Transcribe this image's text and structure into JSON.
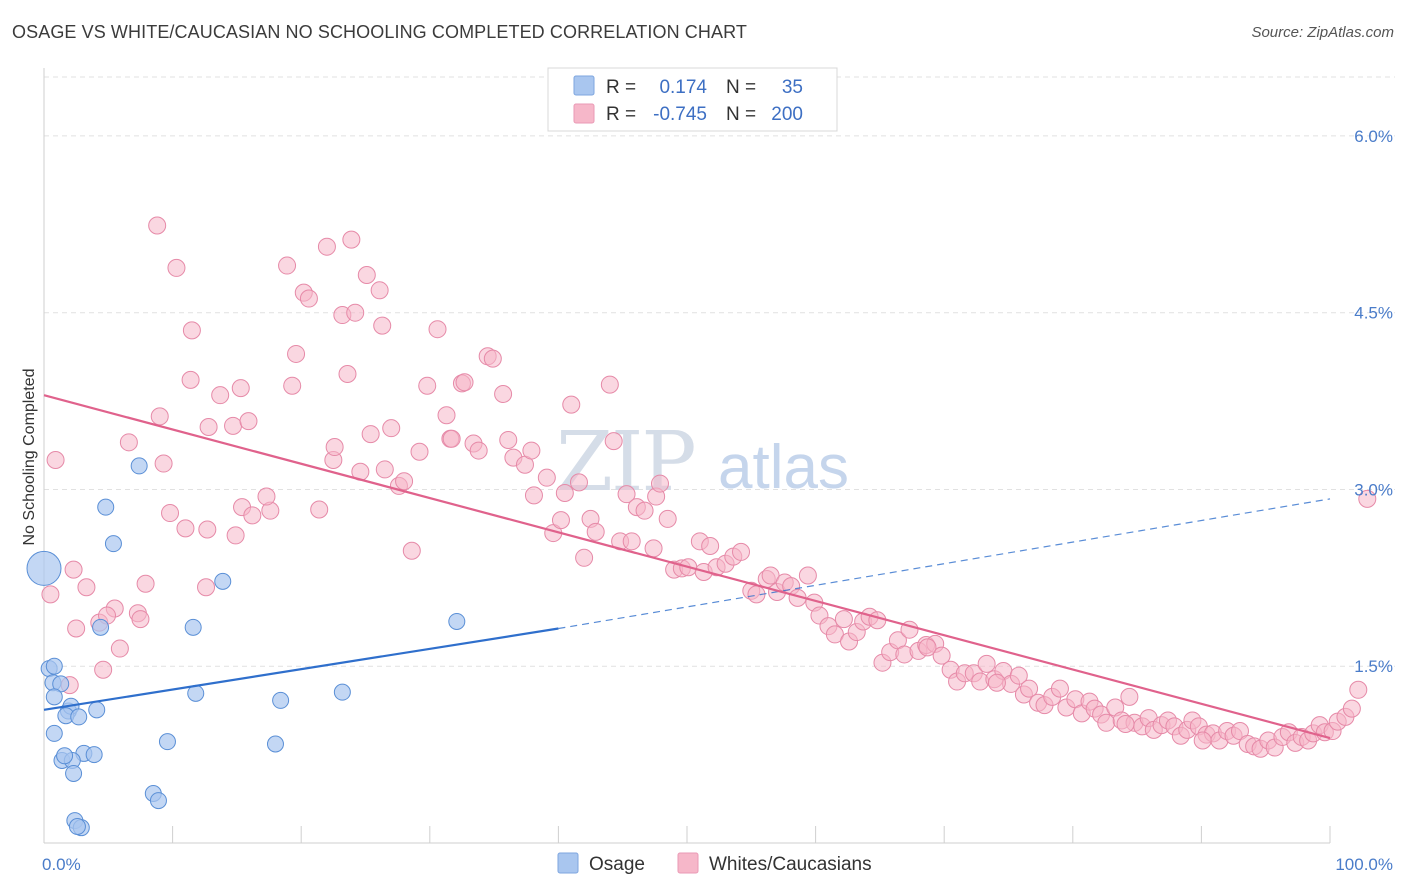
{
  "title": "OSAGE VS WHITE/CAUCASIAN NO SCHOOLING COMPLETED CORRELATION CHART",
  "source": "Source: ZipAtlas.com",
  "watermark": {
    "zip": "ZIP",
    "atlas": "atlas"
  },
  "legend": {
    "rows": [
      {
        "r_label": "R =",
        "r_value": "0.174",
        "n_label": "N =",
        "n_value": "35",
        "color": "#a9c6ef"
      },
      {
        "r_label": "R =",
        "r_value": "-0.745",
        "n_label": "N =",
        "n_value": "200",
        "color": "#f6b7c9"
      }
    ]
  },
  "bottom_legend": [
    {
      "label": "Osage",
      "color": "#a9c6ef"
    },
    {
      "label": "Whites/Caucasians",
      "color": "#f6b7c9"
    }
  ],
  "colors": {
    "osage_fill": "#a9c6ef",
    "osage_stroke": "#5a8fd6",
    "osage_line": "#2f6fcc",
    "white_fill": "#f6b7c9",
    "white_stroke": "#e68aa8",
    "white_line": "#e0628c",
    "grid": "#e1e1e1",
    "tick_text": "#4a7cc9"
  },
  "chart_data": {
    "type": "scatter",
    "title": "OSAGE VS WHITE/CAUCASIAN NO SCHOOLING COMPLETED CORRELATION CHART",
    "xlabel": "",
    "ylabel": "No Schooling Completed",
    "xlim": [
      0,
      100
    ],
    "ylim": [
      0,
      6.5
    ],
    "y_ticks": [
      {
        "v": 1.5,
        "label": "1.5%"
      },
      {
        "v": 3.0,
        "label": "3.0%"
      },
      {
        "v": 4.5,
        "label": "4.5%"
      },
      {
        "v": 6.0,
        "label": "6.0%"
      }
    ],
    "x_tick_labels": [
      {
        "v": 0,
        "label": "0.0%"
      },
      {
        "v": 100,
        "label": "100.0%"
      }
    ],
    "grid": true,
    "legend_position": "top-center",
    "series": [
      {
        "name": "Osage",
        "r": 0.174,
        "n": 35,
        "trend": {
          "x0": 0,
          "y0": 1.13,
          "x1": 40,
          "y1": 1.82,
          "dash_to_x": 100,
          "dash_to_y": 2.92
        },
        "points": [
          [
            0,
            2.33,
            2.0
          ],
          [
            0.4,
            1.48,
            1
          ],
          [
            0.8,
            1.5,
            1
          ],
          [
            0.7,
            1.36,
            1
          ],
          [
            1.3,
            1.35,
            1
          ],
          [
            0.8,
            0.93,
            1
          ],
          [
            1.9,
            1.12,
            1
          ],
          [
            2.1,
            1.16,
            1
          ],
          [
            1.7,
            1.08,
            1
          ],
          [
            2.7,
            1.07,
            1
          ],
          [
            4.1,
            1.13,
            1
          ],
          [
            3.1,
            0.76,
            1
          ],
          [
            3.9,
            0.75,
            1
          ],
          [
            1.4,
            0.7,
            1
          ],
          [
            2.2,
            0.7,
            1
          ],
          [
            2.3,
            0.59,
            1
          ],
          [
            1.6,
            0.74,
            1
          ],
          [
            2.4,
            0.19,
            1
          ],
          [
            2.9,
            0.13,
            1
          ],
          [
            2.6,
            0.14,
            1
          ],
          [
            4.8,
            2.85,
            1
          ],
          [
            5.4,
            2.54,
            1
          ],
          [
            7.4,
            3.2,
            1
          ],
          [
            8.5,
            0.42,
            1
          ],
          [
            8.9,
            0.36,
            1
          ],
          [
            9.6,
            0.86,
            1
          ],
          [
            11.6,
            1.83,
            1
          ],
          [
            11.8,
            1.27,
            1
          ],
          [
            13.9,
            2.22,
            1
          ],
          [
            18.0,
            0.84,
            1
          ],
          [
            18.4,
            1.21,
            1
          ],
          [
            23.2,
            1.28,
            1
          ],
          [
            4.4,
            1.83,
            1
          ],
          [
            32.1,
            1.88,
            1
          ],
          [
            0.8,
            1.24,
            1
          ]
        ]
      },
      {
        "name": "Whites/Caucasians",
        "r": -0.745,
        "n": 200,
        "trend": {
          "x0": 0,
          "y0": 3.8,
          "x1": 100,
          "y1": 0.89
        },
        "points": [
          [
            8.8,
            5.24
          ],
          [
            10.3,
            4.88
          ],
          [
            9.0,
            3.62
          ],
          [
            9.3,
            3.22
          ],
          [
            11.5,
            4.35
          ],
          [
            11.4,
            3.93
          ],
          [
            12.8,
            3.53
          ],
          [
            13.7,
            3.8
          ],
          [
            14.7,
            3.54
          ],
          [
            15.3,
            3.86
          ],
          [
            15.9,
            3.58
          ],
          [
            12.7,
            2.66
          ],
          [
            14.9,
            2.61
          ],
          [
            15.4,
            2.85
          ],
          [
            16.2,
            2.78
          ],
          [
            17.6,
            2.82
          ],
          [
            9.8,
            2.8
          ],
          [
            6.6,
            3.4
          ],
          [
            11.0,
            2.67
          ],
          [
            12.6,
            2.17
          ],
          [
            7.3,
            1.95
          ],
          [
            7.5,
            1.9
          ],
          [
            7.9,
            2.2
          ],
          [
            5.5,
            1.99
          ],
          [
            5.9,
            1.65
          ],
          [
            4.6,
            1.47
          ],
          [
            3.3,
            2.17
          ],
          [
            2.3,
            2.32
          ],
          [
            2.5,
            1.82
          ],
          [
            0.9,
            3.25
          ],
          [
            0.5,
            2.11
          ],
          [
            2.0,
            1.34
          ],
          [
            4.3,
            1.87
          ],
          [
            4.9,
            1.93
          ],
          [
            17.3,
            2.94
          ],
          [
            18.9,
            4.9
          ],
          [
            19.6,
            4.15
          ],
          [
            19.3,
            3.88
          ],
          [
            20.2,
            4.67
          ],
          [
            20.6,
            4.62
          ],
          [
            21.4,
            2.83
          ],
          [
            22.0,
            5.06
          ],
          [
            23.2,
            4.48
          ],
          [
            23.9,
            5.12
          ],
          [
            23.6,
            3.98
          ],
          [
            24.2,
            4.5
          ],
          [
            22.5,
            3.25
          ],
          [
            22.6,
            3.36
          ],
          [
            25.1,
            4.82
          ],
          [
            26.1,
            4.69
          ],
          [
            25.4,
            3.47
          ],
          [
            24.6,
            3.15
          ],
          [
            26.5,
            3.17
          ],
          [
            27.0,
            3.52
          ],
          [
            27.6,
            3.03
          ],
          [
            28.0,
            3.07
          ],
          [
            28.6,
            2.48
          ],
          [
            29.2,
            3.32
          ],
          [
            29.8,
            3.88
          ],
          [
            30.6,
            4.36
          ],
          [
            31.3,
            3.63
          ],
          [
            31.6,
            3.43
          ],
          [
            31.7,
            3.43
          ],
          [
            32.5,
            3.9
          ],
          [
            32.7,
            3.91
          ],
          [
            33.4,
            3.39
          ],
          [
            33.8,
            3.33
          ],
          [
            34.5,
            4.13
          ],
          [
            34.9,
            4.11
          ],
          [
            35.7,
            3.81
          ],
          [
            26.3,
            4.39
          ],
          [
            36.1,
            3.42
          ],
          [
            36.5,
            3.27
          ],
          [
            37.4,
            3.21
          ],
          [
            37.9,
            3.33
          ],
          [
            38.1,
            2.95
          ],
          [
            39.1,
            3.1
          ],
          [
            39.6,
            2.63
          ],
          [
            40.2,
            2.74
          ],
          [
            40.5,
            2.97
          ],
          [
            41.0,
            3.72
          ],
          [
            41.6,
            3.06
          ],
          [
            42.0,
            2.42
          ],
          [
            42.5,
            2.75
          ],
          [
            42.9,
            2.64
          ],
          [
            44.0,
            3.89
          ],
          [
            44.3,
            3.41
          ],
          [
            44.8,
            2.56
          ],
          [
            45.3,
            2.96
          ],
          [
            45.7,
            2.56
          ],
          [
            46.1,
            2.85
          ],
          [
            46.7,
            2.82
          ],
          [
            47.4,
            2.5
          ],
          [
            47.6,
            2.94
          ],
          [
            47.9,
            3.05
          ],
          [
            48.5,
            2.75
          ],
          [
            49.0,
            2.32
          ],
          [
            49.6,
            2.33
          ],
          [
            50.1,
            2.34
          ],
          [
            51.0,
            2.56
          ],
          [
            51.3,
            2.3
          ],
          [
            51.8,
            2.52
          ],
          [
            52.3,
            2.34
          ],
          [
            53.0,
            2.37
          ],
          [
            53.6,
            2.43
          ],
          [
            54.2,
            2.47
          ],
          [
            55.0,
            2.14
          ],
          [
            55.4,
            2.11
          ],
          [
            56.2,
            2.24
          ],
          [
            56.5,
            2.27
          ],
          [
            57.0,
            2.13
          ],
          [
            57.6,
            2.21
          ],
          [
            58.1,
            2.18
          ],
          [
            58.6,
            2.08
          ],
          [
            59.4,
            2.27
          ],
          [
            59.9,
            2.04
          ],
          [
            60.3,
            1.93
          ],
          [
            61.0,
            1.84
          ],
          [
            61.5,
            1.77
          ],
          [
            62.2,
            1.9
          ],
          [
            62.6,
            1.71
          ],
          [
            63.2,
            1.79
          ],
          [
            63.7,
            1.88
          ],
          [
            64.2,
            1.92
          ],
          [
            64.8,
            1.89
          ],
          [
            65.2,
            1.53
          ],
          [
            65.8,
            1.62
          ],
          [
            66.4,
            1.72
          ],
          [
            66.9,
            1.6
          ],
          [
            67.3,
            1.81
          ],
          [
            68.0,
            1.63
          ],
          [
            68.6,
            1.68
          ],
          [
            69.3,
            1.69
          ],
          [
            69.8,
            1.59
          ],
          [
            70.5,
            1.47
          ],
          [
            71.0,
            1.37
          ],
          [
            71.6,
            1.44
          ],
          [
            72.3,
            1.44
          ],
          [
            72.8,
            1.37
          ],
          [
            73.3,
            1.52
          ],
          [
            73.9,
            1.39
          ],
          [
            74.6,
            1.46
          ],
          [
            75.2,
            1.35
          ],
          [
            75.8,
            1.42
          ],
          [
            76.2,
            1.26
          ],
          [
            76.6,
            1.31
          ],
          [
            77.3,
            1.19
          ],
          [
            77.8,
            1.17
          ],
          [
            78.4,
            1.24
          ],
          [
            79.0,
            1.31
          ],
          [
            79.5,
            1.15
          ],
          [
            80.2,
            1.22
          ],
          [
            80.7,
            1.1
          ],
          [
            81.3,
            1.2
          ],
          [
            81.7,
            1.14
          ],
          [
            82.2,
            1.09
          ],
          [
            82.6,
            1.02
          ],
          [
            83.3,
            1.15
          ],
          [
            83.8,
            1.04
          ],
          [
            84.4,
            1.24
          ],
          [
            84.8,
            1.02
          ],
          [
            85.4,
            0.99
          ],
          [
            85.9,
            1.06
          ],
          [
            86.3,
            0.96
          ],
          [
            86.9,
            1.0
          ],
          [
            87.4,
            1.04
          ],
          [
            87.9,
            0.99
          ],
          [
            88.4,
            0.91
          ],
          [
            88.9,
            0.96
          ],
          [
            89.3,
            1.04
          ],
          [
            89.8,
            0.99
          ],
          [
            90.4,
            0.92
          ],
          [
            90.9,
            0.93
          ],
          [
            91.4,
            0.87
          ],
          [
            92.0,
            0.95
          ],
          [
            92.5,
            0.91
          ],
          [
            93.0,
            0.95
          ],
          [
            93.6,
            0.84
          ],
          [
            94.1,
            0.82
          ],
          [
            94.6,
            0.8
          ],
          [
            95.2,
            0.87
          ],
          [
            95.7,
            0.81
          ],
          [
            96.3,
            0.9
          ],
          [
            96.8,
            0.94
          ],
          [
            97.3,
            0.85
          ],
          [
            97.8,
            0.9
          ],
          [
            98.3,
            0.87
          ],
          [
            98.7,
            0.93
          ],
          [
            99.2,
            1.0
          ],
          [
            99.6,
            0.94
          ],
          [
            100.2,
            0.95
          ],
          [
            100.6,
            1.03
          ],
          [
            101.2,
            1.07
          ],
          [
            101.7,
            1.14
          ],
          [
            102.2,
            1.3
          ],
          [
            102.9,
            2.92
          ],
          [
            68.7,
            1.66
          ],
          [
            84.1,
            1.01
          ],
          [
            74.1,
            1.36
          ],
          [
            90.1,
            0.87
          ]
        ]
      }
    ]
  }
}
